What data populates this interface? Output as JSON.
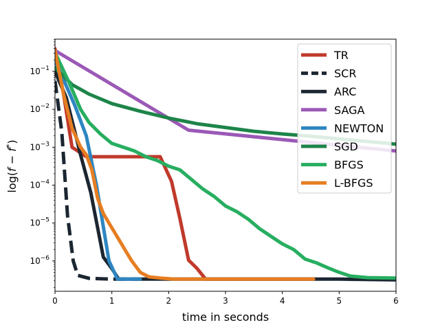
{
  "chart_data": {
    "type": "line",
    "title": "",
    "xlabel": "time in seconds",
    "ylabel": "log(f − f*)",
    "ylabel_main": "log(",
    "ylabel_f": "f",
    "ylabel_minus": " − ",
    "ylabel_star": "*",
    "ylabel_close": ")",
    "xlim": [
      0,
      6
    ],
    "ylim_log10": [
      -6.8,
      -0.15
    ],
    "yscale": "log",
    "grid": false,
    "legend_position": "top-right",
    "x_ticks": [
      {
        "value": 0,
        "label": "0"
      },
      {
        "value": 1,
        "label": "1"
      },
      {
        "value": 2,
        "label": "2"
      },
      {
        "value": 3,
        "label": "3"
      },
      {
        "value": 4,
        "label": "4"
      },
      {
        "value": 5,
        "label": "5"
      },
      {
        "value": 6,
        "label": "6"
      }
    ],
    "y_ticks": [
      {
        "exp": -1,
        "base": "10",
        "sup": "−1"
      },
      {
        "exp": -2,
        "base": "10",
        "sup": "−2"
      },
      {
        "exp": -3,
        "base": "10",
        "sup": "−3"
      },
      {
        "exp": -4,
        "base": "10",
        "sup": "−4"
      },
      {
        "exp": -5,
        "base": "10",
        "sup": "−5"
      },
      {
        "exp": -6,
        "base": "10",
        "sup": "−6"
      }
    ],
    "series": [
      {
        "name": "TR",
        "color": "#c0392b",
        "dash": false,
        "points": [
          [
            0,
            -0.4
          ],
          [
            0.15,
            -1.6
          ],
          [
            0.3,
            -3.0
          ],
          [
            0.55,
            -3.25
          ],
          [
            1.0,
            -3.25
          ],
          [
            1.5,
            -3.25
          ],
          [
            1.85,
            -3.25
          ],
          [
            2.05,
            -3.9
          ],
          [
            2.2,
            -4.9
          ],
          [
            2.35,
            -5.98
          ],
          [
            2.5,
            -6.2
          ],
          [
            2.65,
            -6.48
          ],
          [
            3,
            -6.48
          ],
          [
            4,
            -6.48
          ],
          [
            4.55,
            -6.48
          ]
        ]
      },
      {
        "name": "SCR",
        "color": "#1b2631",
        "dash": true,
        "points": [
          [
            0,
            -1.25
          ],
          [
            0.12,
            -2.6
          ],
          [
            0.22,
            -4.8
          ],
          [
            0.32,
            -6.0
          ],
          [
            0.4,
            -6.38
          ],
          [
            0.6,
            -6.46
          ],
          [
            1.0,
            -6.48
          ],
          [
            1.5,
            -6.48
          ]
        ]
      },
      {
        "name": "ARC",
        "color": "#1b2631",
        "dash": false,
        "points": [
          [
            0,
            -1.0
          ],
          [
            0.2,
            -1.7
          ],
          [
            0.45,
            -3.2
          ],
          [
            0.63,
            -4.2
          ],
          [
            0.85,
            -5.9
          ],
          [
            1.0,
            -6.2
          ],
          [
            1.12,
            -6.48
          ],
          [
            2,
            -6.48
          ],
          [
            3,
            -6.48
          ],
          [
            4,
            -6.48
          ],
          [
            5,
            -6.48
          ],
          [
            6,
            -6.5
          ]
        ]
      },
      {
        "name": "SAGA",
        "color": "#9b59b6",
        "dash": false,
        "points": [
          [
            0,
            -0.45
          ],
          [
            2.35,
            -2.55
          ],
          [
            6,
            -3.1
          ]
        ]
      },
      {
        "name": "NEWTON",
        "color": "#2e86c1",
        "dash": false,
        "points": [
          [
            0,
            -0.7
          ],
          [
            0.35,
            -1.9
          ],
          [
            0.55,
            -2.7
          ],
          [
            0.73,
            -4.0
          ],
          [
            0.85,
            -5.1
          ],
          [
            0.95,
            -6.0
          ],
          [
            1.1,
            -6.48
          ],
          [
            1.5,
            -6.48
          ]
        ]
      },
      {
        "name": "SGD",
        "color": "#1e8449",
        "dash": false,
        "points": [
          [
            0,
            -0.9
          ],
          [
            0.3,
            -1.35
          ],
          [
            0.6,
            -1.6
          ],
          [
            1.0,
            -1.85
          ],
          [
            1.5,
            -2.05
          ],
          [
            2.0,
            -2.23
          ],
          [
            2.5,
            -2.38
          ],
          [
            3.0,
            -2.48
          ],
          [
            3.5,
            -2.58
          ],
          [
            4.0,
            -2.65
          ],
          [
            4.5,
            -2.71
          ],
          [
            5.0,
            -2.78
          ],
          [
            5.5,
            -2.85
          ],
          [
            6,
            -2.92
          ]
        ]
      },
      {
        "name": "BFGS",
        "color": "#27ae60",
        "dash": false,
        "points": [
          [
            0,
            -0.5
          ],
          [
            0.25,
            -1.3
          ],
          [
            0.45,
            -2.0
          ],
          [
            0.6,
            -2.35
          ],
          [
            0.8,
            -2.65
          ],
          [
            1.0,
            -2.9
          ],
          [
            1.2,
            -3.0
          ],
          [
            1.4,
            -3.1
          ],
          [
            1.6,
            -3.25
          ],
          [
            1.8,
            -3.35
          ],
          [
            2.0,
            -3.5
          ],
          [
            2.2,
            -3.6
          ],
          [
            2.4,
            -3.85
          ],
          [
            2.6,
            -4.1
          ],
          [
            2.8,
            -4.3
          ],
          [
            3.0,
            -4.55
          ],
          [
            3.2,
            -4.7
          ],
          [
            3.4,
            -4.9
          ],
          [
            3.6,
            -5.15
          ],
          [
            3.8,
            -5.35
          ],
          [
            4.0,
            -5.55
          ],
          [
            4.2,
            -5.7
          ],
          [
            4.4,
            -5.95
          ],
          [
            4.6,
            -6.05
          ],
          [
            4.8,
            -6.18
          ],
          [
            5.0,
            -6.3
          ],
          [
            5.2,
            -6.4
          ],
          [
            5.5,
            -6.44
          ],
          [
            6,
            -6.45
          ]
        ]
      },
      {
        "name": "L-BFGS",
        "color": "#e67e22",
        "dash": false,
        "points": [
          [
            0,
            -0.45
          ],
          [
            0.15,
            -1.6
          ],
          [
            0.3,
            -2.5
          ],
          [
            0.45,
            -3.0
          ],
          [
            0.55,
            -3.2
          ],
          [
            0.65,
            -3.6
          ],
          [
            0.75,
            -4.35
          ],
          [
            0.85,
            -4.75
          ],
          [
            0.95,
            -5.0
          ],
          [
            1.05,
            -5.25
          ],
          [
            1.15,
            -5.5
          ],
          [
            1.25,
            -5.75
          ],
          [
            1.35,
            -6.0
          ],
          [
            1.5,
            -6.3
          ],
          [
            1.65,
            -6.42
          ],
          [
            1.85,
            -6.45
          ],
          [
            2.1,
            -6.48
          ],
          [
            3,
            -6.48
          ],
          [
            4,
            -6.48
          ],
          [
            4.55,
            -6.48
          ]
        ]
      }
    ]
  }
}
